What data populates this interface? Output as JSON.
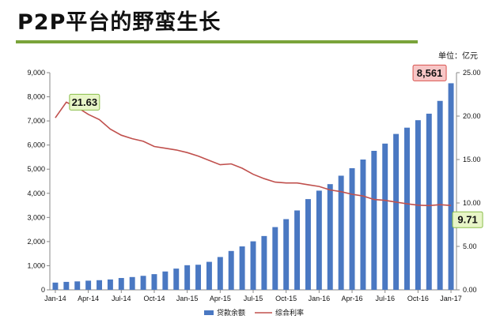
{
  "header": {
    "title": "P2P平台的野蛮生长",
    "unit": "单位：亿元"
  },
  "chart_data": {
    "type": "bar",
    "x_months": [
      "Jan-14",
      "Feb-14",
      "Mar-14",
      "Apr-14",
      "May-14",
      "Jun-14",
      "Jul-14",
      "Aug-14",
      "Sep-14",
      "Oct-14",
      "Nov-14",
      "Dec-14",
      "Jan-15",
      "Feb-15",
      "Mar-15",
      "Apr-15",
      "May-15",
      "Jun-15",
      "Jul-15",
      "Aug-15",
      "Sep-15",
      "Oct-15",
      "Nov-15",
      "Dec-15",
      "Jan-16",
      "Feb-16",
      "Mar-16",
      "Apr-16",
      "May-16",
      "Jun-16",
      "Jul-16",
      "Aug-16",
      "Sep-16",
      "Oct-16",
      "Nov-16",
      "Dec-16",
      "Jan-17"
    ],
    "x_tick_labels": [
      "Jan-14",
      "Apr-14",
      "Jul-14",
      "Oct-14",
      "Jan-15",
      "Apr-15",
      "Jul-15",
      "Oct-15",
      "Jan-16",
      "Apr-16",
      "Jul-16",
      "Oct-16",
      "Jan-17"
    ],
    "series": [
      {
        "name": "贷款余额",
        "type": "bar",
        "axis": "left",
        "color": "#4a78c2",
        "values": [
          300,
          330,
          350,
          380,
          400,
          430,
          490,
          530,
          580,
          650,
          760,
          880,
          1020,
          1040,
          1160,
          1360,
          1610,
          1800,
          2010,
          2230,
          2600,
          2930,
          3290,
          3760,
          4110,
          4380,
          4730,
          5040,
          5400,
          5760,
          6060,
          6460,
          6720,
          7030,
          7300,
          7830,
          8561
        ]
      },
      {
        "name": "综合利率",
        "type": "line",
        "axis": "right",
        "color": "#c0504d",
        "values": [
          19.8,
          21.6,
          21.0,
          20.2,
          19.6,
          18.5,
          17.8,
          17.4,
          17.1,
          16.5,
          16.3,
          16.1,
          15.8,
          15.4,
          14.9,
          14.4,
          14.5,
          14.0,
          13.3,
          12.8,
          12.4,
          12.3,
          12.3,
          12.1,
          11.9,
          11.5,
          11.3,
          11.0,
          10.8,
          10.4,
          10.3,
          10.1,
          9.9,
          9.75,
          9.7,
          9.8,
          9.71
        ]
      }
    ],
    "y_left": {
      "min": 0,
      "max": 9000,
      "ticks": [
        "0",
        "1,000",
        "2,000",
        "3,000",
        "4,000",
        "5,000",
        "6,000",
        "7,000",
        "8,000",
        "9,000"
      ]
    },
    "y_right": {
      "min": 0,
      "max": 25,
      "ticks": [
        "0.00",
        "5.00",
        "10.00",
        "15.00",
        "20.00",
        "25.00"
      ]
    },
    "annotations": [
      {
        "text": "21.63",
        "series": "综合利率",
        "index": 1,
        "style": "green"
      },
      {
        "text": "8,561",
        "series": "贷款余额",
        "index": 36,
        "style": "red"
      },
      {
        "text": "9.71",
        "series": "综合利率",
        "index": 36,
        "style": "green"
      }
    ],
    "legend": {
      "position": "bottom"
    },
    "colors": {
      "callout_green_fill": "#e8f5c8",
      "callout_green_border": "#8bbf4a",
      "callout_red_fill": "#f7c6c6",
      "callout_red_border": "#d9534f"
    }
  }
}
